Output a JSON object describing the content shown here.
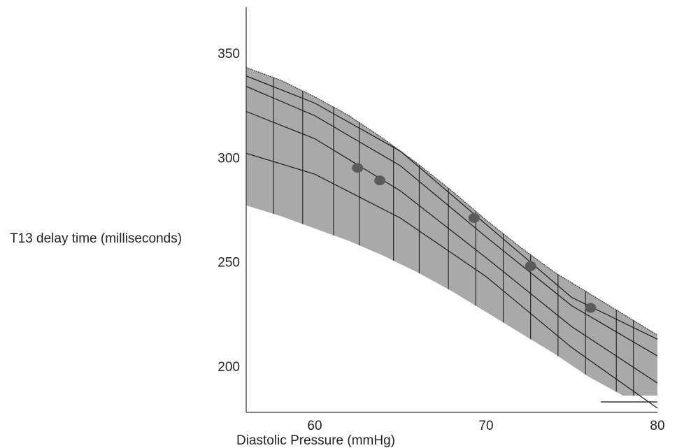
{
  "chart_data": {
    "type": "area",
    "title": "",
    "xlabel": "Diastolic Pressure (mmHg)",
    "ylabel": "T13 delay time (milliseconds)",
    "xlim": [
      56,
      80
    ],
    "ylim": [
      178,
      372
    ],
    "xticks": [
      60,
      70,
      80
    ],
    "yticks": [
      200,
      250,
      300,
      350
    ],
    "grid": false,
    "band": {
      "x": [
        56,
        58,
        60,
        62,
        64,
        66,
        68,
        70,
        72,
        74,
        76,
        78,
        80
      ],
      "upper": [
        343,
        337,
        329,
        320,
        309,
        297,
        284,
        270,
        257,
        245,
        235,
        225,
        215
      ],
      "lower": [
        277,
        272,
        266,
        260,
        253,
        245,
        236,
        226,
        216,
        206,
        195,
        186,
        186
      ]
    },
    "contour_lines": [
      {
        "x": [
          56,
          60,
          65,
          70,
          75,
          80
        ],
        "y": [
          339,
          326,
          303,
          268,
          233,
          213
        ]
      },
      {
        "x": [
          56,
          60,
          65,
          70,
          75,
          80
        ],
        "y": [
          334,
          320,
          296,
          262,
          229,
          205
        ]
      },
      {
        "x": [
          56,
          60,
          65,
          70,
          75,
          80
        ],
        "y": [
          322,
          309,
          284,
          252,
          219,
          192
        ]
      },
      {
        "x": [
          56,
          60,
          65,
          70,
          75,
          80
        ],
        "y": [
          302,
          292,
          271,
          243,
          209,
          180
        ]
      }
    ],
    "rib_x": [
      57.6,
      59.3,
      61.1,
      62.6,
      64.6,
      66.1,
      67.8,
      69.4,
      71.0,
      72.6,
      74.2,
      75.8,
      77.6,
      78.6
    ],
    "floor_line": {
      "x": [
        76.7,
        80
      ],
      "y": [
        183,
        183
      ]
    },
    "points": [
      {
        "x": 62.5,
        "y": 295
      },
      {
        "x": 63.8,
        "y": 289
      },
      {
        "x": 69.3,
        "y": 271
      },
      {
        "x": 72.6,
        "y": 248
      },
      {
        "x": 76.1,
        "y": 228
      }
    ]
  }
}
